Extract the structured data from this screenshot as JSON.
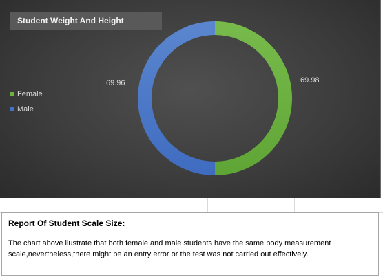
{
  "chart_data": {
    "type": "pie",
    "style": "donut",
    "title": "Student Weight And Height",
    "categories": [
      "Female",
      "Male"
    ],
    "values": [
      69.98,
      69.96
    ],
    "colors": [
      "#6db33f",
      "#4472c4"
    ],
    "legend_position": "left",
    "data_labels": [
      "69.98",
      "69.96"
    ]
  },
  "report": {
    "title": "Report Of Student Scale Size:",
    "body": "The chart above ilustrate that both female and male students have the same body measurement scale,nevertheless,there might be an entry error or the test was not carried out effectively."
  }
}
